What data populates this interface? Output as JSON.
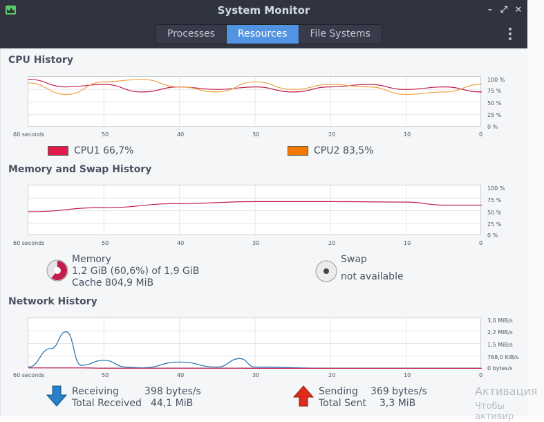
{
  "window": {
    "title": "System Monitor"
  },
  "tabs": [
    {
      "label": "Processes"
    },
    {
      "label": "Resources"
    },
    {
      "label": "File Systems"
    }
  ],
  "sections": {
    "cpu": "CPU History",
    "memory": "Memory and Swap History",
    "network": "Network History"
  },
  "x_ticks": [
    "60 seconds",
    "50",
    "40",
    "30",
    "20",
    "10",
    "0"
  ],
  "percent_ticks": [
    "100 %",
    "75 %",
    "50 %",
    "25 %",
    "0 %"
  ],
  "network_ticks": [
    "3,0 MiB/s",
    "2,2 MiB/s",
    "1,5 MiB/s",
    "768,0 KiB/s",
    "0 bytes/s"
  ],
  "cpu_legend": [
    {
      "name": "CPU1",
      "value": "66,7%",
      "color": "#e01b4c"
    },
    {
      "name": "CPU2",
      "value": "83,5%",
      "color": "#f57900"
    }
  ],
  "memory_legend": {
    "title": "Memory",
    "usage": "1,2 GiB (60,6%) of 1,9 GiB",
    "cache": "Cache 804,9 MiB",
    "swap_title": "Swap",
    "swap_status": "not available"
  },
  "network_legend": {
    "receiving_label": "Receiving",
    "receiving_value": "398 bytes/s",
    "total_received_label": "Total Received",
    "total_received_value": "44,1 MiB",
    "sending_label": "Sending",
    "sending_value": "369 bytes/s",
    "total_sent_label": "Total Sent",
    "total_sent_value": "3,3 MiB"
  },
  "watermark": {
    "line1": "Активация",
    "line2": "Чтобы активир"
  },
  "chart_data": [
    {
      "type": "line",
      "title": "CPU History",
      "x": [
        60,
        55,
        50,
        45,
        40,
        35,
        30,
        25,
        20,
        15,
        10,
        5,
        0
      ],
      "ylim": [
        0,
        100
      ],
      "series": [
        {
          "name": "CPU1",
          "color": "#c01c4c",
          "values": [
            95,
            80,
            85,
            70,
            80,
            75,
            80,
            70,
            80,
            85,
            75,
            80,
            70
          ]
        },
        {
          "name": "CPU2",
          "color": "#f0a040",
          "values": [
            88,
            65,
            90,
            95,
            80,
            70,
            90,
            75,
            85,
            80,
            65,
            70,
            85
          ]
        }
      ]
    },
    {
      "type": "line",
      "title": "Memory and Swap History",
      "x": [
        60,
        50,
        40,
        30,
        20,
        10,
        5,
        0
      ],
      "ylim": [
        0,
        100
      ],
      "series": [
        {
          "name": "Memory",
          "color": "#c01c4c",
          "values": [
            48,
            56,
            64,
            68,
            68,
            67,
            61,
            61
          ]
        }
      ]
    },
    {
      "type": "line",
      "title": "Network History",
      "x": [
        60,
        57,
        55,
        53,
        50,
        47,
        45,
        40,
        35,
        32,
        30,
        20,
        10,
        0
      ],
      "ylim": [
        0,
        3.0
      ],
      "series": [
        {
          "name": "Receiving",
          "color": "#1a6fb0",
          "values": [
            0.1,
            1.2,
            2.2,
            0.2,
            0.5,
            0.1,
            0.05,
            0.4,
            0.1,
            0.6,
            0.1,
            0.02,
            0.02,
            0.02
          ]
        },
        {
          "name": "Sending",
          "color": "#c01c4c",
          "values": [
            0.05,
            0.05,
            0.05,
            0.05,
            0.03,
            0.03,
            0.03,
            0.03,
            0.03,
            0.03,
            0.02,
            0.02,
            0.02,
            0.02
          ]
        }
      ]
    }
  ]
}
